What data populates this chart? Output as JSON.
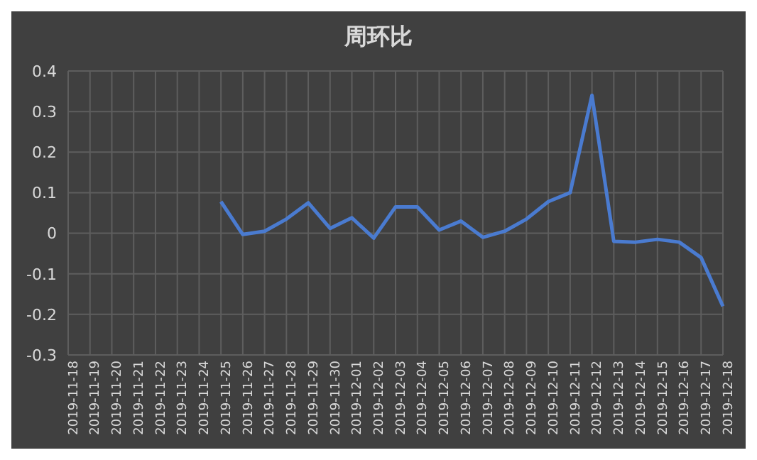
{
  "chart_data": {
    "type": "line",
    "title": "周环比",
    "categories": [
      "2019-11-18",
      "2019-11-19",
      "2019-11-20",
      "2019-11-21",
      "2019-11-22",
      "2019-11-23",
      "2019-11-24",
      "2019-11-25",
      "2019-11-26",
      "2019-11-27",
      "2019-11-28",
      "2019-11-29",
      "2019-11-30",
      "2019-12-01",
      "2019-12-02",
      "2019-12-03",
      "2019-12-04",
      "2019-12-05",
      "2019-12-06",
      "2019-12-07",
      "2019-12-08",
      "2019-12-09",
      "2019-12-10",
      "2019-12-11",
      "2019-12-12",
      "2019-12-13",
      "2019-12-14",
      "2019-12-15",
      "2019-12-16",
      "2019-12-17",
      "2019-12-18"
    ],
    "series": [
      {
        "color": "#4a7bd0",
        "values": [
          null,
          null,
          null,
          null,
          null,
          null,
          null,
          0.078,
          -0.003,
          0.005,
          0.035,
          0.075,
          0.012,
          0.038,
          -0.012,
          0.065,
          0.065,
          0.008,
          0.03,
          -0.01,
          0.005,
          0.035,
          0.078,
          0.1,
          0.34,
          -0.02,
          -0.022,
          -0.015,
          -0.022,
          -0.06,
          -0.18
        ]
      }
    ],
    "ylim": [
      -0.3,
      0.4
    ],
    "yticks": [
      -0.3,
      -0.2,
      -0.1,
      0,
      0.1,
      0.2,
      0.3,
      0.4
    ],
    "grid": true,
    "legend": false,
    "marker": "none",
    "line_style": "solid"
  }
}
